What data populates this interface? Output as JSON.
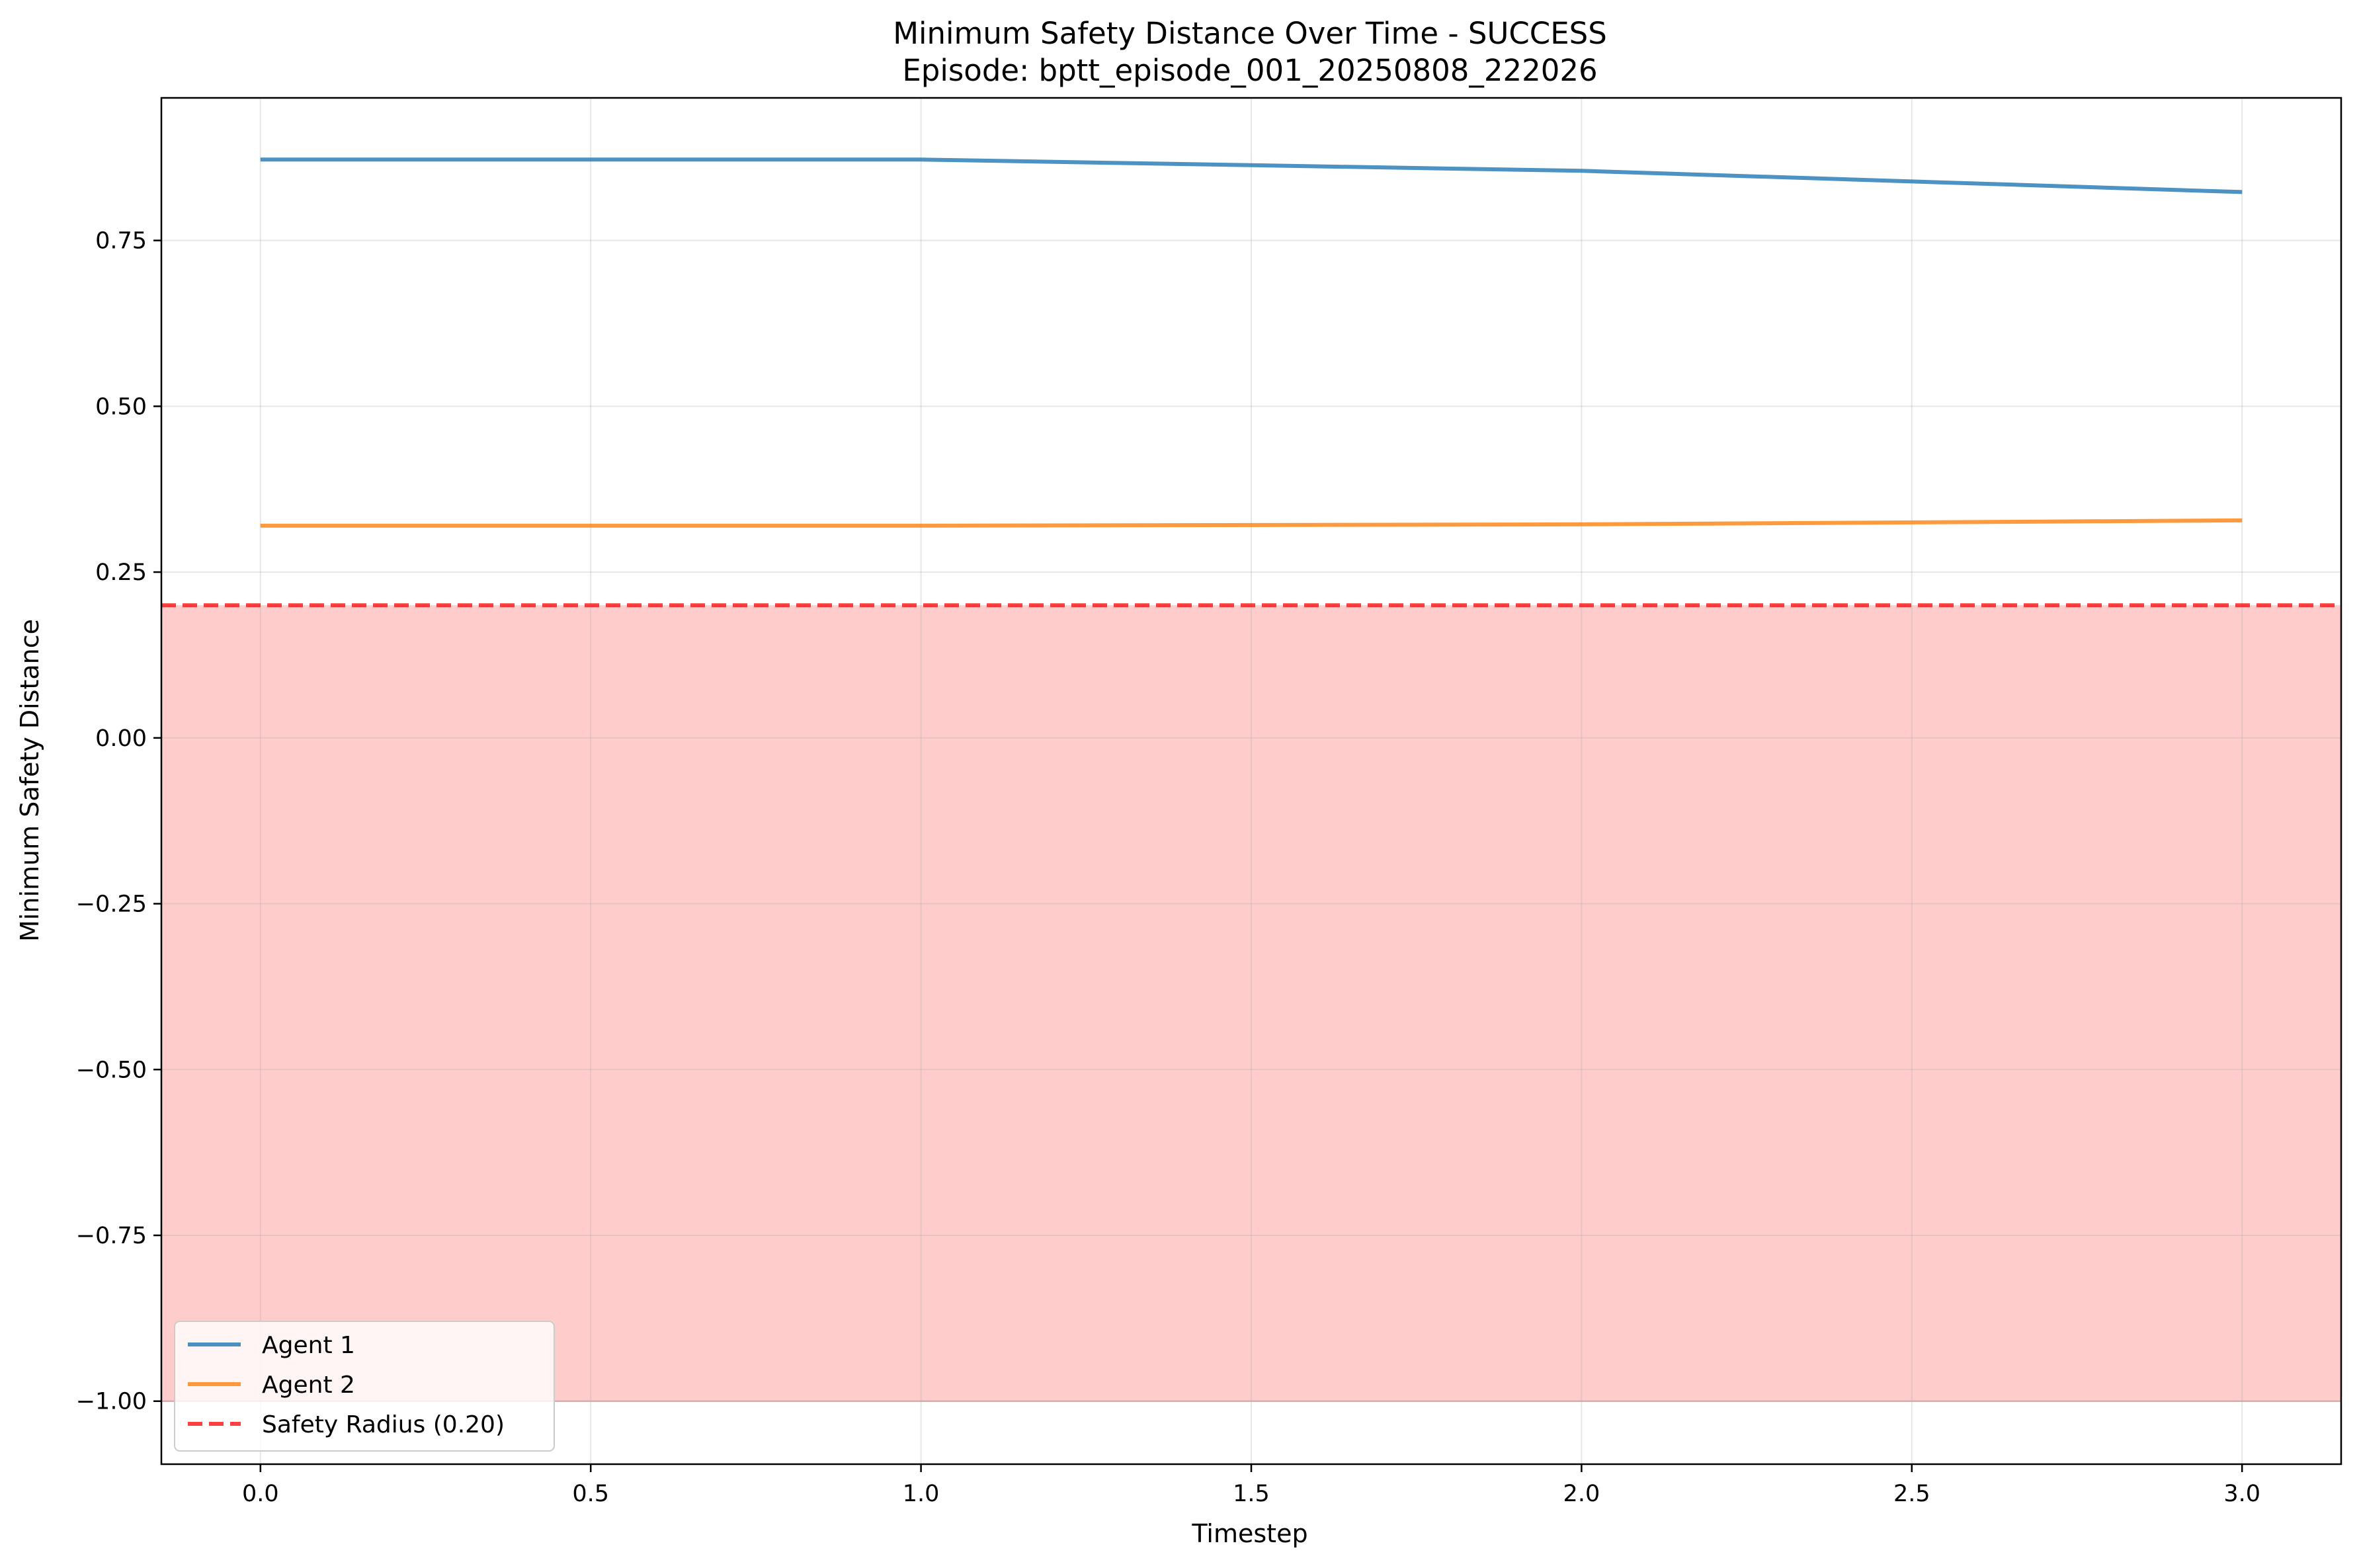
{
  "chart_data": {
    "type": "line",
    "title": "Minimum Safety Distance Over Time - SUCCESS",
    "subtitle": "Episode: bptt_episode_001_20250808_222026",
    "xlabel": "Timestep",
    "ylabel": "Minimum Safety Distance",
    "xlim": [
      -0.15,
      3.15
    ],
    "ylim": [
      -1.095,
      0.965
    ],
    "xticks": [
      0.0,
      0.5,
      1.0,
      1.5,
      2.0,
      2.5,
      3.0
    ],
    "xtick_labels": [
      "0.0",
      "0.5",
      "1.0",
      "1.5",
      "2.0",
      "2.5",
      "3.0"
    ],
    "yticks": [
      0.75,
      0.5,
      0.25,
      0.0,
      -0.25,
      -0.5,
      -0.75,
      -1.0
    ],
    "ytick_labels": [
      "0.75",
      "0.50",
      "0.25",
      "0.00",
      "−0.25",
      "−0.50",
      "−0.75",
      "−1.00"
    ],
    "grid": true,
    "legend_position": "lower-left",
    "series": [
      {
        "name": "Agent 1",
        "color": "#1f77b4",
        "x": [
          0,
          1,
          2,
          3
        ],
        "values": [
          0.872,
          0.872,
          0.855,
          0.823
        ]
      },
      {
        "name": "Agent 2",
        "color": "#ff7f0e",
        "x": [
          0,
          1,
          2,
          3
        ],
        "values": [
          0.32,
          0.32,
          0.322,
          0.328
        ]
      }
    ],
    "reference_line": {
      "name": "Safety Radius (0.20)",
      "value": 0.2,
      "color": "#ff0000",
      "style": "dashed"
    },
    "unsafe_region": {
      "from": -1.0,
      "to": 0.2,
      "color": "#ff0000"
    }
  }
}
